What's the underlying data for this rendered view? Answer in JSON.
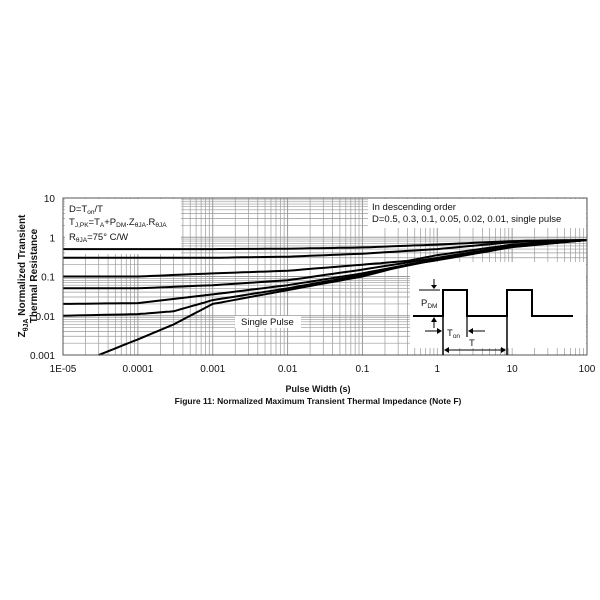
{
  "chart_data": {
    "type": "line",
    "title": "Figure 11: Normalized Maximum Transient Thermal Impedance (Note F)",
    "xlabel": "Pulse Width (s)",
    "ylabel": {
      "symbol": "Z",
      "subscript": "θJA",
      "line1": " Normalized Transient",
      "line2": "Thermal Resistance"
    },
    "x_scale": "log",
    "y_scale": "log",
    "xlim": [
      1e-05,
      100
    ],
    "ylim": [
      0.001,
      10
    ],
    "x_tick_labels": [
      "1E-05",
      "0.0001",
      "0.001",
      "0.01",
      "0.1",
      "1",
      "10",
      "100"
    ],
    "y_tick_labels": [
      "10",
      "1",
      "0.1",
      "0.01",
      "0.001"
    ],
    "grid": true,
    "line_color": "#000000",
    "grid_color": "#9a9a9a",
    "series": [
      {
        "D": 0.5,
        "x": [
          1e-05,
          0.001,
          0.01,
          0.1,
          1,
          10,
          100
        ],
        "y": [
          0.5,
          0.5,
          0.51,
          0.55,
          0.65,
          0.8,
          0.85
        ]
      },
      {
        "D": 0.3,
        "x": [
          1e-05,
          0.001,
          0.01,
          0.1,
          1,
          10,
          100
        ],
        "y": [
          0.3,
          0.3,
          0.32,
          0.38,
          0.5,
          0.75,
          0.85
        ]
      },
      {
        "D": 0.1,
        "x": [
          1e-05,
          0.0001,
          0.001,
          0.01,
          0.1,
          0.4,
          1,
          10,
          100
        ],
        "y": [
          0.1,
          0.1,
          0.12,
          0.14,
          0.2,
          0.25,
          0.35,
          0.65,
          0.85
        ]
      },
      {
        "D": 0.05,
        "x": [
          1e-05,
          0.0001,
          0.001,
          0.01,
          0.1,
          1,
          10,
          100
        ],
        "y": [
          0.05,
          0.05,
          0.06,
          0.08,
          0.15,
          0.3,
          0.6,
          0.85
        ]
      },
      {
        "D": 0.02,
        "x": [
          1e-05,
          0.0001,
          0.001,
          0.01,
          0.1,
          1,
          10,
          100
        ],
        "y": [
          0.02,
          0.021,
          0.035,
          0.06,
          0.12,
          0.28,
          0.58,
          0.85
        ]
      },
      {
        "D": 0.01,
        "x": [
          1e-05,
          0.0001,
          0.0003,
          0.001,
          0.01,
          0.1,
          1,
          10,
          100
        ],
        "y": [
          0.01,
          0.011,
          0.013,
          0.025,
          0.05,
          0.11,
          0.27,
          0.57,
          0.85
        ]
      },
      {
        "D": "single pulse",
        "x": [
          3e-05,
          0.0001,
          0.0003,
          0.001,
          0.01,
          0.1,
          0.4,
          1,
          10,
          100
        ],
        "y": [
          0.001,
          0.0025,
          0.006,
          0.02,
          0.045,
          0.1,
          0.2,
          0.26,
          0.56,
          0.85
        ]
      }
    ],
    "annotations": {
      "duty": {
        "a": "D=T",
        "a_sub": "on",
        "b": "/T"
      },
      "tj": {
        "a": "T",
        "a_sub": "J,PK",
        "b": "=T",
        "b_sub": "A",
        "c": "+P",
        "c_sub": "DM",
        "d": ".Z",
        "d_sub": "θJA",
        "e": ".R",
        "e_sub": "θJA"
      },
      "rth": {
        "a": "R",
        "a_sub": "θJA",
        "b": "=75°  C/W"
      },
      "order_line1": "In descending order",
      "order_line2": "D=0.5, 0.3, 0.1, 0.05, 0.02, 0.01, single pulse",
      "single_pulse": "Single Pulse",
      "pdm": {
        "a": "P",
        "a_sub": "DM"
      },
      "ton": {
        "a": "T",
        "a_sub": "on"
      },
      "period": "T"
    }
  }
}
